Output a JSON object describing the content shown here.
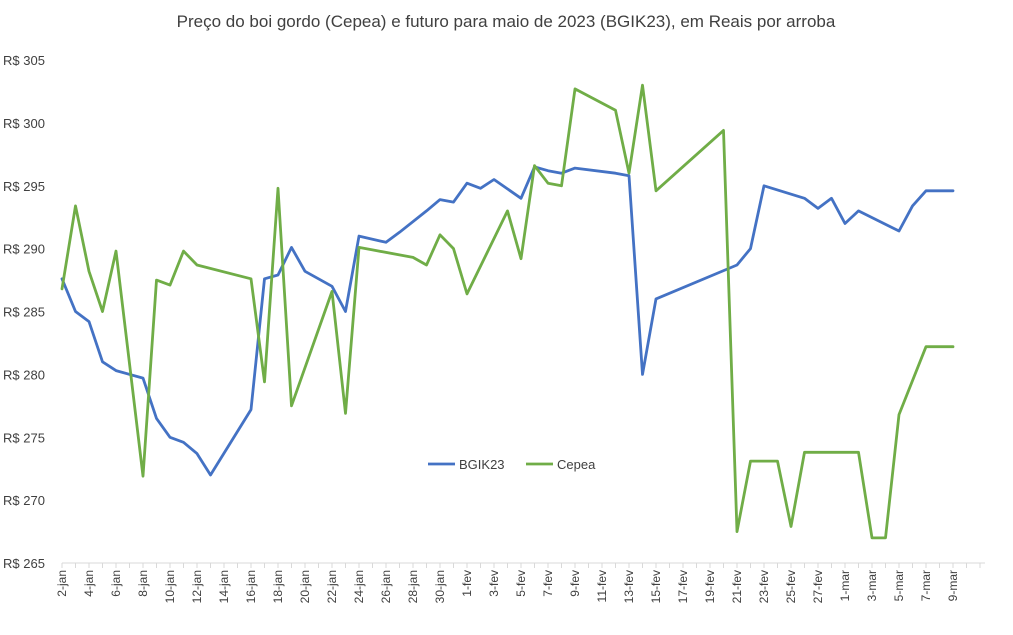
{
  "chart_data": {
    "type": "line",
    "title": "Preço do boi gordo (Cepea) e futuro para maio de 2023 (BGIK23), em Reais por arroba",
    "xlabel": "",
    "ylabel": "",
    "ylim": [
      265,
      305
    ],
    "yticks": [
      265,
      270,
      275,
      280,
      285,
      290,
      295,
      300,
      305
    ],
    "ytick_labels": [
      "R$ 265",
      "R$ 270",
      "R$ 275",
      "R$ 280",
      "R$ 285",
      "R$ 290",
      "R$ 295",
      "R$ 300",
      "R$ 305"
    ],
    "x_start": "2-jan",
    "x_days": 68,
    "x_tick_labels": [
      "2-jan",
      "4-jan",
      "6-jan",
      "8-jan",
      "10-jan",
      "12-jan",
      "14-jan",
      "16-jan",
      "18-jan",
      "20-jan",
      "22-jan",
      "24-jan",
      "26-jan",
      "28-jan",
      "30-jan",
      "1-fev",
      "3-fev",
      "5-fev",
      "7-fev",
      "9-fev",
      "11-fev",
      "13-fev",
      "15-fev",
      "17-fev",
      "19-fev",
      "21-fev",
      "23-fev",
      "25-fev",
      "27-fev",
      "1-mar",
      "3-mar",
      "5-mar",
      "7-mar",
      "9-mar"
    ],
    "legend_position": "center",
    "series": [
      {
        "name": "BGIK23",
        "color": "#4472C4",
        "x": [
          0,
          1,
          2,
          3,
          4,
          6,
          7,
          8,
          9,
          10,
          11,
          14,
          15,
          16,
          17,
          18,
          20,
          21,
          22,
          24,
          25,
          27,
          28,
          29,
          30,
          31,
          32,
          34,
          35,
          36,
          37,
          38,
          41,
          42,
          43,
          44,
          50,
          51,
          52,
          55,
          56,
          57,
          58,
          59,
          62,
          63,
          64,
          65,
          66
        ],
        "values": [
          287.6,
          285.0,
          284.2,
          281.0,
          280.3,
          279.7,
          276.5,
          275.0,
          274.6,
          273.7,
          272.0,
          277.2,
          287.6,
          287.9,
          290.1,
          288.2,
          287.0,
          285.0,
          291.0,
          290.5,
          291.3,
          293.0,
          293.9,
          293.7,
          295.2,
          294.8,
          295.5,
          294.0,
          296.5,
          296.2,
          296.0,
          296.4,
          296.0,
          295.8,
          280.0,
          286.0,
          288.7,
          290.0,
          295.0,
          294.0,
          293.2,
          294.0,
          292.0,
          293.0,
          291.4,
          293.4,
          294.6,
          294.6,
          294.6
        ]
      },
      {
        "name": "Cepea",
        "color": "#70AD47",
        "x": [
          0,
          1,
          2,
          3,
          4,
          6,
          7,
          8,
          9,
          10,
          14,
          15,
          16,
          17,
          20,
          21,
          22,
          23,
          26,
          27,
          28,
          29,
          30,
          33,
          34,
          35,
          36,
          37,
          38,
          41,
          42,
          43,
          44,
          49,
          50,
          51,
          53,
          54,
          55,
          56,
          59,
          60,
          61,
          62,
          64,
          65,
          66
        ],
        "values": [
          286.8,
          293.4,
          288.2,
          285.0,
          289.8,
          271.9,
          287.5,
          287.1,
          289.8,
          288.7,
          287.6,
          279.4,
          294.8,
          277.5,
          286.6,
          276.9,
          290.1,
          289.9,
          289.3,
          288.7,
          291.1,
          290.0,
          286.4,
          293.0,
          289.2,
          296.6,
          295.2,
          295.0,
          302.7,
          301.0,
          296.0,
          303.0,
          294.6,
          299.4,
          267.5,
          273.1,
          273.1,
          267.9,
          273.8,
          273.8,
          273.8,
          267.0,
          267.0,
          276.8,
          282.2,
          282.2,
          282.2
        ]
      }
    ]
  }
}
